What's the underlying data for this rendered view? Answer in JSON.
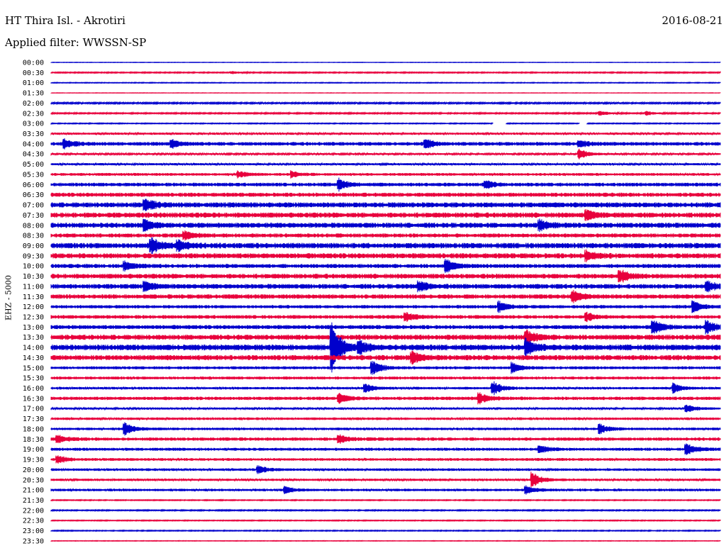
{
  "header": {
    "station": "HT Thira Isl. - Akrotiri",
    "date": "2016-08-21",
    "filter": "Applied filter: WWSSN-SP"
  },
  "chart_data": {
    "type": "line",
    "ylabel": "EHZ - 5000",
    "tick_labels": [
      "00:00",
      "00:30",
      "01:00",
      "01:30",
      "02:00",
      "02:30",
      "03:00",
      "03:30",
      "04:00",
      "04:30",
      "05:00",
      "05:30",
      "06:00",
      "06:30",
      "07:00",
      "07:30",
      "08:00",
      "08:30",
      "09:00",
      "09:30",
      "10:00",
      "10:30",
      "11:00",
      "11:30",
      "12:00",
      "12:30",
      "13:00",
      "13:30",
      "14:00",
      "14:30",
      "15:00",
      "15:30",
      "16:00",
      "16:30",
      "17:00",
      "17:30",
      "18:00",
      "18:30",
      "19:00",
      "19:30",
      "20:00",
      "20:30",
      "21:00",
      "21:30",
      "22:00",
      "22:30",
      "23:00",
      "23:30"
    ],
    "colors": [
      "#0000cc",
      "#e8003c"
    ],
    "noise_level": [
      0.2,
      0.6,
      0.4,
      0.2,
      0.8,
      0.7,
      0.5,
      1.2,
      2.0,
      1.0,
      1.2,
      1.5,
      2.0,
      2.2,
      2.8,
      2.8,
      2.8,
      2.2,
      3.0,
      2.8,
      2.2,
      2.6,
      2.6,
      2.4,
      1.8,
      2.0,
      2.2,
      2.8,
      3.2,
      2.8,
      1.6,
      1.6,
      1.4,
      1.8,
      1.2,
      1.4,
      1.4,
      1.8,
      1.6,
      1.5,
      1.4,
      1.3,
      1.4,
      0.5,
      0.6,
      0.5,
      0.5,
      0.3
    ],
    "events": [
      {
        "trace": 1,
        "x": 0.27,
        "amp": 1.5
      },
      {
        "trace": 5,
        "x": 0.82,
        "amp": 3
      },
      {
        "trace": 5,
        "x": 0.89,
        "amp": 2.5
      },
      {
        "trace": 8,
        "x": 0.02,
        "amp": 6
      },
      {
        "trace": 8,
        "x": 0.18,
        "amp": 5
      },
      {
        "trace": 8,
        "x": 0.56,
        "amp": 6
      },
      {
        "trace": 8,
        "x": 0.79,
        "amp": 4
      },
      {
        "trace": 9,
        "x": 0.79,
        "amp": 6
      },
      {
        "trace": 11,
        "x": 0.28,
        "amp": 4
      },
      {
        "trace": 11,
        "x": 0.36,
        "amp": 4
      },
      {
        "trace": 12,
        "x": 0.43,
        "amp": 7
      },
      {
        "trace": 12,
        "x": 0.65,
        "amp": 5
      },
      {
        "trace": 14,
        "x": 0.14,
        "amp": 8
      },
      {
        "trace": 15,
        "x": 0.8,
        "amp": 6
      },
      {
        "trace": 16,
        "x": 0.14,
        "amp": 7
      },
      {
        "trace": 16,
        "x": 0.73,
        "amp": 6
      },
      {
        "trace": 17,
        "x": 0.2,
        "amp": 5
      },
      {
        "trace": 18,
        "x": 0.15,
        "amp": 9
      },
      {
        "trace": 18,
        "x": 0.19,
        "amp": 6
      },
      {
        "trace": 19,
        "x": 0.8,
        "amp": 6
      },
      {
        "trace": 20,
        "x": 0.11,
        "amp": 6
      },
      {
        "trace": 20,
        "x": 0.59,
        "amp": 8
      },
      {
        "trace": 21,
        "x": 0.85,
        "amp": 8
      },
      {
        "trace": 22,
        "x": 0.14,
        "amp": 6
      },
      {
        "trace": 22,
        "x": 0.55,
        "amp": 6
      },
      {
        "trace": 22,
        "x": 0.98,
        "amp": 6
      },
      {
        "trace": 23,
        "x": 0.78,
        "amp": 7
      },
      {
        "trace": 24,
        "x": 0.67,
        "amp": 6
      },
      {
        "trace": 24,
        "x": 0.96,
        "amp": 7
      },
      {
        "trace": 25,
        "x": 0.53,
        "amp": 5
      },
      {
        "trace": 25,
        "x": 0.8,
        "amp": 5
      },
      {
        "trace": 26,
        "x": 0.9,
        "amp": 9
      },
      {
        "trace": 26,
        "x": 0.98,
        "amp": 8
      },
      {
        "trace": 27,
        "x": 0.71,
        "amp": 9
      },
      {
        "trace": 28,
        "x": 0.42,
        "amp": 32
      },
      {
        "trace": 28,
        "x": 0.46,
        "amp": 8
      },
      {
        "trace": 28,
        "x": 0.71,
        "amp": 10
      },
      {
        "trace": 29,
        "x": 0.54,
        "amp": 7
      },
      {
        "trace": 30,
        "x": 0.48,
        "amp": 9
      },
      {
        "trace": 30,
        "x": 0.69,
        "amp": 6
      },
      {
        "trace": 32,
        "x": 0.47,
        "amp": 5
      },
      {
        "trace": 32,
        "x": 0.66,
        "amp": 9
      },
      {
        "trace": 32,
        "x": 0.93,
        "amp": 6
      },
      {
        "trace": 33,
        "x": 0.43,
        "amp": 6
      },
      {
        "trace": 33,
        "x": 0.64,
        "amp": 7
      },
      {
        "trace": 34,
        "x": 0.95,
        "amp": 5
      },
      {
        "trace": 36,
        "x": 0.11,
        "amp": 9
      },
      {
        "trace": 36,
        "x": 0.82,
        "amp": 6
      },
      {
        "trace": 37,
        "x": 0.01,
        "amp": 5
      },
      {
        "trace": 37,
        "x": 0.43,
        "amp": 5
      },
      {
        "trace": 38,
        "x": 0.73,
        "amp": 5
      },
      {
        "trace": 38,
        "x": 0.95,
        "amp": 8
      },
      {
        "trace": 39,
        "x": 0.01,
        "amp": 5
      },
      {
        "trace": 40,
        "x": 0.31,
        "amp": 5
      },
      {
        "trace": 41,
        "x": 0.72,
        "amp": 9
      },
      {
        "trace": 42,
        "x": 0.71,
        "amp": 5
      },
      {
        "trace": 42,
        "x": 0.35,
        "amp": 4
      }
    ],
    "gaps": [
      {
        "trace": 6,
        "x0": 0.66,
        "x1": 0.68
      },
      {
        "trace": 6,
        "x0": 0.79,
        "x1": 0.8
      }
    ]
  }
}
